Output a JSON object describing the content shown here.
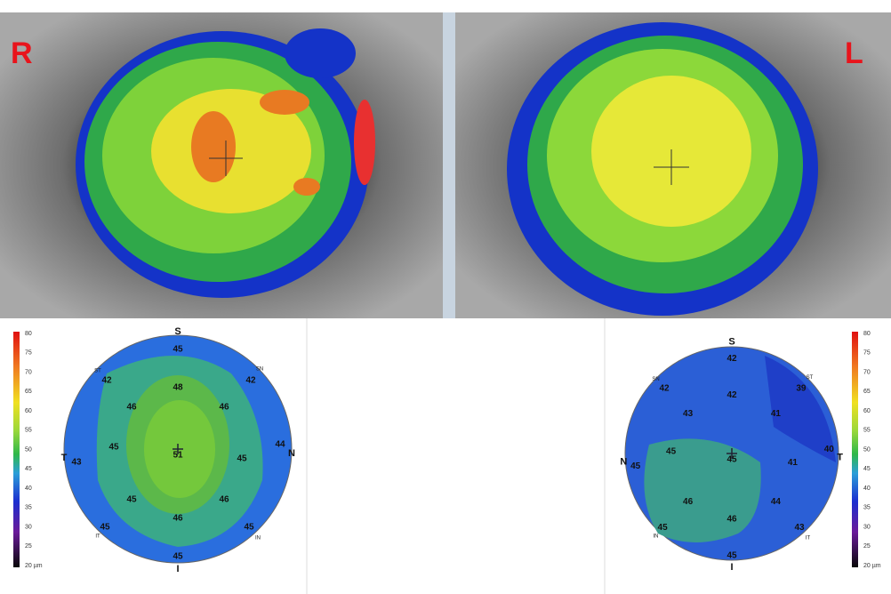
{
  "photos": {
    "right_eye_label": "R",
    "left_eye_label": "L"
  },
  "colorbar": {
    "labels": [
      80,
      75,
      70,
      65,
      60,
      55,
      50,
      45,
      40,
      35,
      30,
      25,
      "20 µm"
    ]
  },
  "maps": [
    {
      "orientation": {
        "top": "S",
        "bottom": "I",
        "left": "T",
        "right": "N",
        "upper_left": "ST",
        "upper_right": "SN",
        "lower_left": "IT",
        "lower_right": "IN"
      },
      "values": [
        45,
        42,
        42,
        48,
        46,
        46,
        44,
        45,
        43,
        51,
        45,
        45,
        46,
        46,
        45,
        45,
        45
      ]
    },
    {
      "orientation": {
        "top": "S",
        "bottom": "I",
        "left": "N",
        "right": "T",
        "upper_left": "SN",
        "upper_right": "ST",
        "lower_left": "IN",
        "lower_right": "IT"
      },
      "values": [
        42,
        42,
        39,
        42,
        43,
        41,
        40,
        45,
        45,
        45,
        41,
        46,
        44,
        46,
        45,
        43,
        45
      ]
    }
  ]
}
